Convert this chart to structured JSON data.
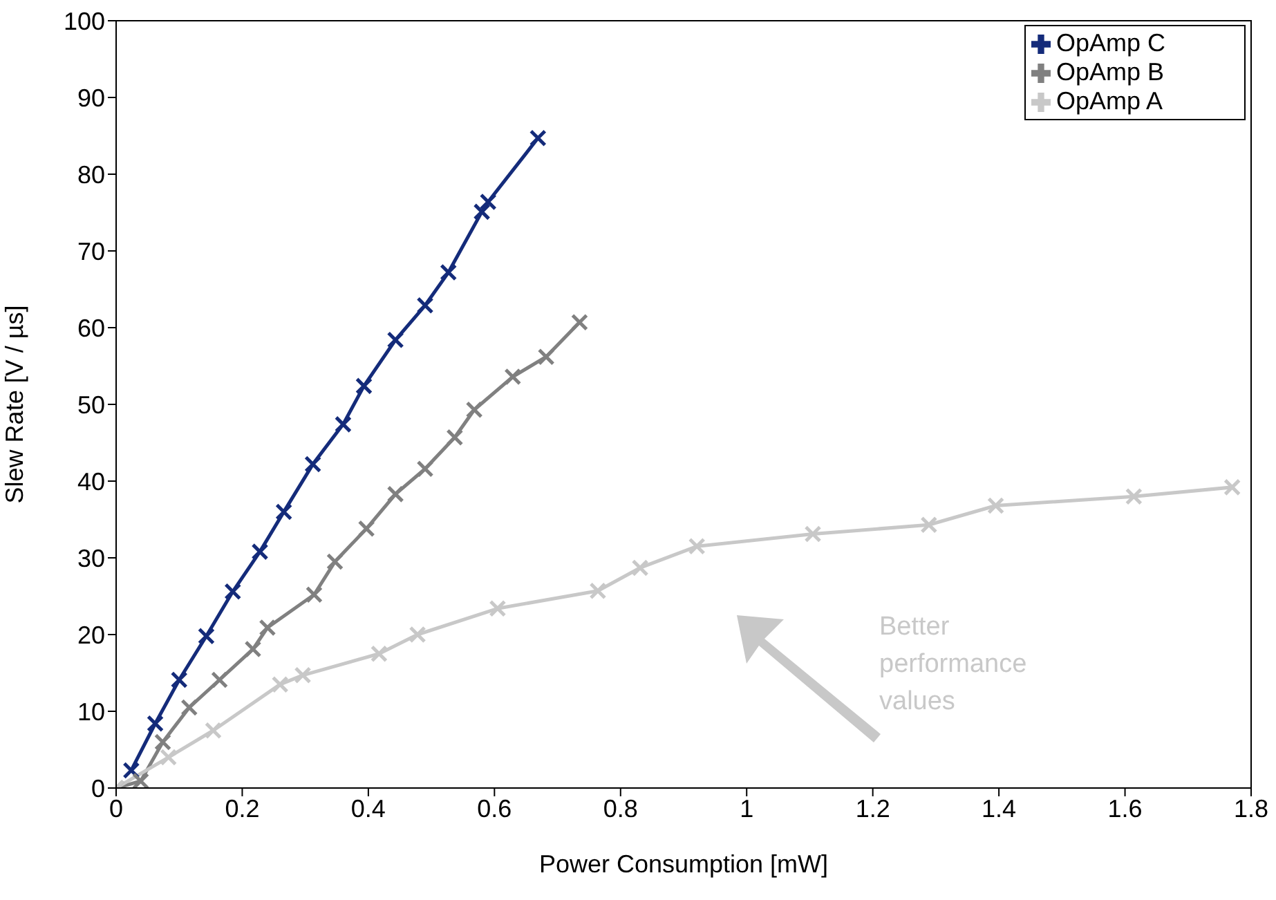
{
  "chart_data": {
    "type": "line",
    "xlabel": "Power Consumption [mW]",
    "ylabel": "Slew Rate [V / µs]",
    "xlim": [
      0,
      1.8
    ],
    "xticks": [
      0,
      0.2,
      0.4,
      0.6,
      0.8,
      1,
      1.2,
      1.4,
      1.6,
      1.8
    ],
    "ylim": [
      0,
      100
    ],
    "yticks": [
      0,
      10,
      20,
      30,
      40,
      50,
      60,
      70,
      80,
      90,
      100
    ],
    "grid": false,
    "legend": "top right",
    "marker": "cross",
    "line_style": "solid",
    "annotations": [
      "Better performance values"
    ],
    "series": [
      {
        "name": "OpAmp C",
        "color": "#142b7a",
        "x": [
          0.024,
          0.062,
          0.1,
          0.143,
          0.185,
          0.228,
          0.266,
          0.312,
          0.36,
          0.393,
          0.443,
          0.49,
          0.527,
          0.58,
          0.59,
          0.669
        ],
        "values": [
          2.3,
          8.4,
          14.1,
          19.8,
          25.6,
          30.8,
          36,
          42.2,
          47.4,
          52.4,
          58.4,
          62.9,
          67.2,
          75.1,
          76.4,
          84.7
        ]
      },
      {
        "name": "OpAmp B",
        "color": "#808080",
        "x": [
          0,
          0.039,
          0.074,
          0.116,
          0.164,
          0.217,
          0.24,
          0.314,
          0.347,
          0.397,
          0.443,
          0.49,
          0.537,
          0.568,
          0.629,
          0.682,
          0.735
        ],
        "values": [
          0,
          0.9,
          6,
          10.5,
          14.1,
          18.1,
          20.9,
          25.2,
          29.5,
          33.8,
          38.3,
          41.6,
          45.7,
          49.3,
          53.6,
          56.2,
          60.7
        ]
      },
      {
        "name": "OpAmp A",
        "color": "#c8c8c8",
        "x": [
          0,
          0.083,
          0.154,
          0.26,
          0.296,
          0.417,
          0.478,
          0.605,
          0.764,
          0.831,
          0.921,
          1.105,
          1.289,
          1.395,
          1.614,
          1.77
        ],
        "values": [
          0,
          4,
          7.5,
          13.5,
          14.7,
          17.5,
          20,
          23.4,
          25.7,
          28.7,
          31.5,
          33.1,
          34.3,
          36.8,
          38,
          39.2
        ]
      }
    ]
  }
}
